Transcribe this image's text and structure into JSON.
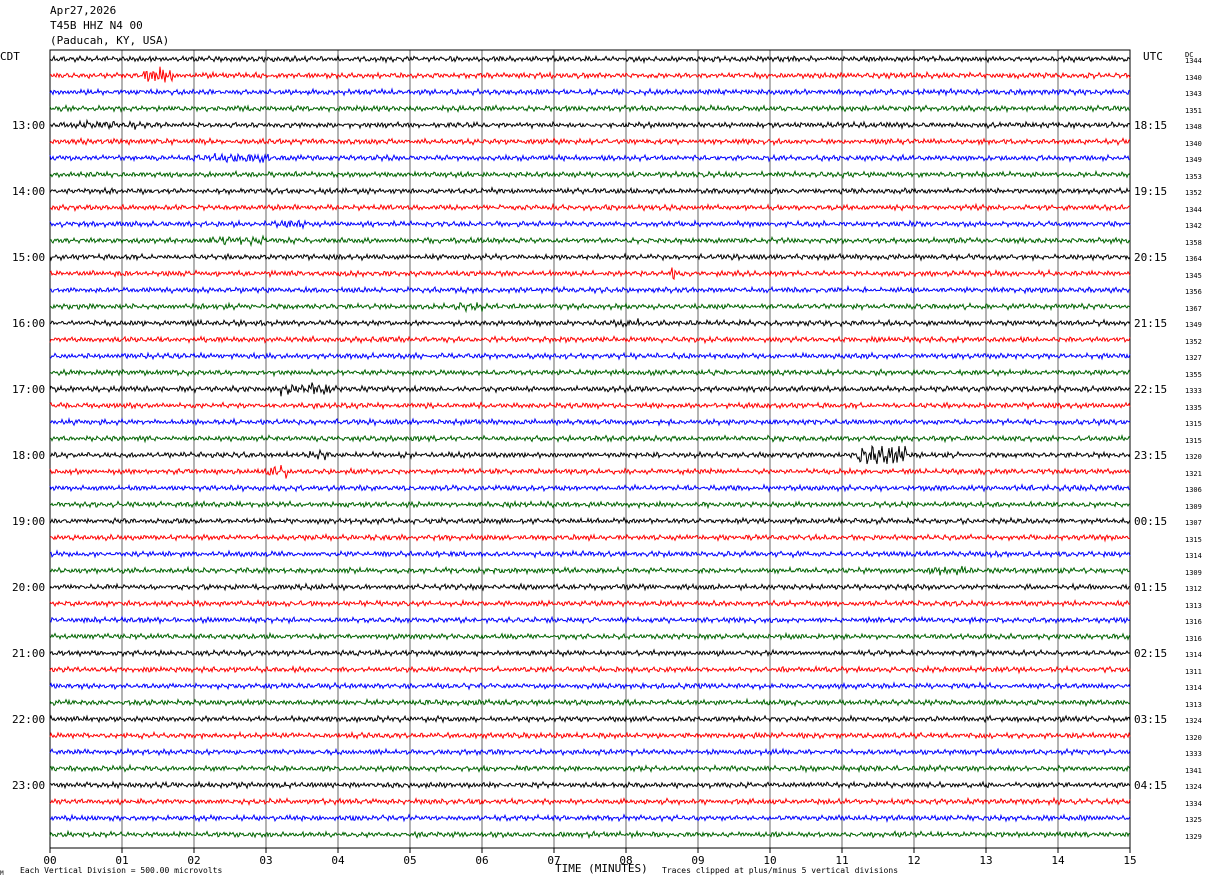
{
  "header": {
    "date": "Apr27,2026",
    "station": "T45B HHZ N4 00",
    "location": "(Paducah, KY, USA)"
  },
  "left_tz": "CDT",
  "right_tz": "UTC",
  "dc_label": "DC",
  "footer": {
    "scale_note": "Each Vertical Division =  500.00 microvolts",
    "clip_note": "Traces clipped at plus/minus 5 vertical divisions",
    "corner_mark": "M"
  },
  "colors": {
    "cycle": [
      "#000000",
      "#ff0000",
      "#0000ff",
      "#006400"
    ],
    "grid": "#000000"
  },
  "chart_data": {
    "type": "line",
    "title": "",
    "xlabel": "TIME (MINUTES)",
    "ylabel": "",
    "x_ticks": [
      "00",
      "01",
      "02",
      "03",
      "04",
      "05",
      "06",
      "07",
      "08",
      "09",
      "10",
      "11",
      "12",
      "13",
      "14",
      "15"
    ],
    "xlim": [
      0,
      15
    ],
    "grid": true,
    "left_hour_labels": [
      "13:00",
      "14:00",
      "15:00",
      "16:00",
      "17:00",
      "18:00",
      "19:00",
      "20:00",
      "21:00",
      "22:00",
      "23:00"
    ],
    "right_hour_labels": [
      "18:15",
      "19:15",
      "20:15",
      "21:15",
      "22:15",
      "23:15",
      "00:15",
      "01:15",
      "02:15",
      "03:15",
      "04:15"
    ],
    "dc_offsets": [
      1344,
      1340,
      1343,
      1351,
      1348,
      1340,
      1349,
      1353,
      1352,
      1344,
      1342,
      1358,
      1364,
      1345,
      1356,
      1367,
      1349,
      1352,
      1327,
      1355,
      1333,
      1335,
      1315,
      1315,
      1320,
      1321,
      1306,
      1309,
      1307,
      1315,
      1314,
      1309,
      1312,
      1313,
      1316,
      1316,
      1314,
      1311,
      1314,
      1313,
      1324,
      1320,
      1333,
      1341,
      1324,
      1334,
      1325,
      1329
    ],
    "events": [
      {
        "trace": 1,
        "start": 1.3,
        "end": 1.7,
        "gain": 3.0
      },
      {
        "trace": 4,
        "start": 0.3,
        "end": 1.2,
        "gain": 1.6
      },
      {
        "trace": 6,
        "start": 2.0,
        "end": 3.1,
        "gain": 1.8
      },
      {
        "trace": 10,
        "start": 3.1,
        "end": 3.6,
        "gain": 1.8
      },
      {
        "trace": 11,
        "start": 2.2,
        "end": 3.0,
        "gain": 1.6
      },
      {
        "trace": 13,
        "start": 8.6,
        "end": 8.7,
        "gain": 2.6
      },
      {
        "trace": 15,
        "start": 5.6,
        "end": 6.0,
        "gain": 1.8
      },
      {
        "trace": 16,
        "start": 7.8,
        "end": 8.2,
        "gain": 1.8
      },
      {
        "trace": 20,
        "start": 3.2,
        "end": 4.0,
        "gain": 2.6
      },
      {
        "trace": 24,
        "start": 3.6,
        "end": 3.9,
        "gain": 1.8
      },
      {
        "trace": 24,
        "start": 11.2,
        "end": 11.9,
        "gain": 5.0
      },
      {
        "trace": 25,
        "start": 3.0,
        "end": 3.3,
        "gain": 2.4
      },
      {
        "trace": 31,
        "start": 12.2,
        "end": 12.8,
        "gain": 1.6
      }
    ]
  }
}
